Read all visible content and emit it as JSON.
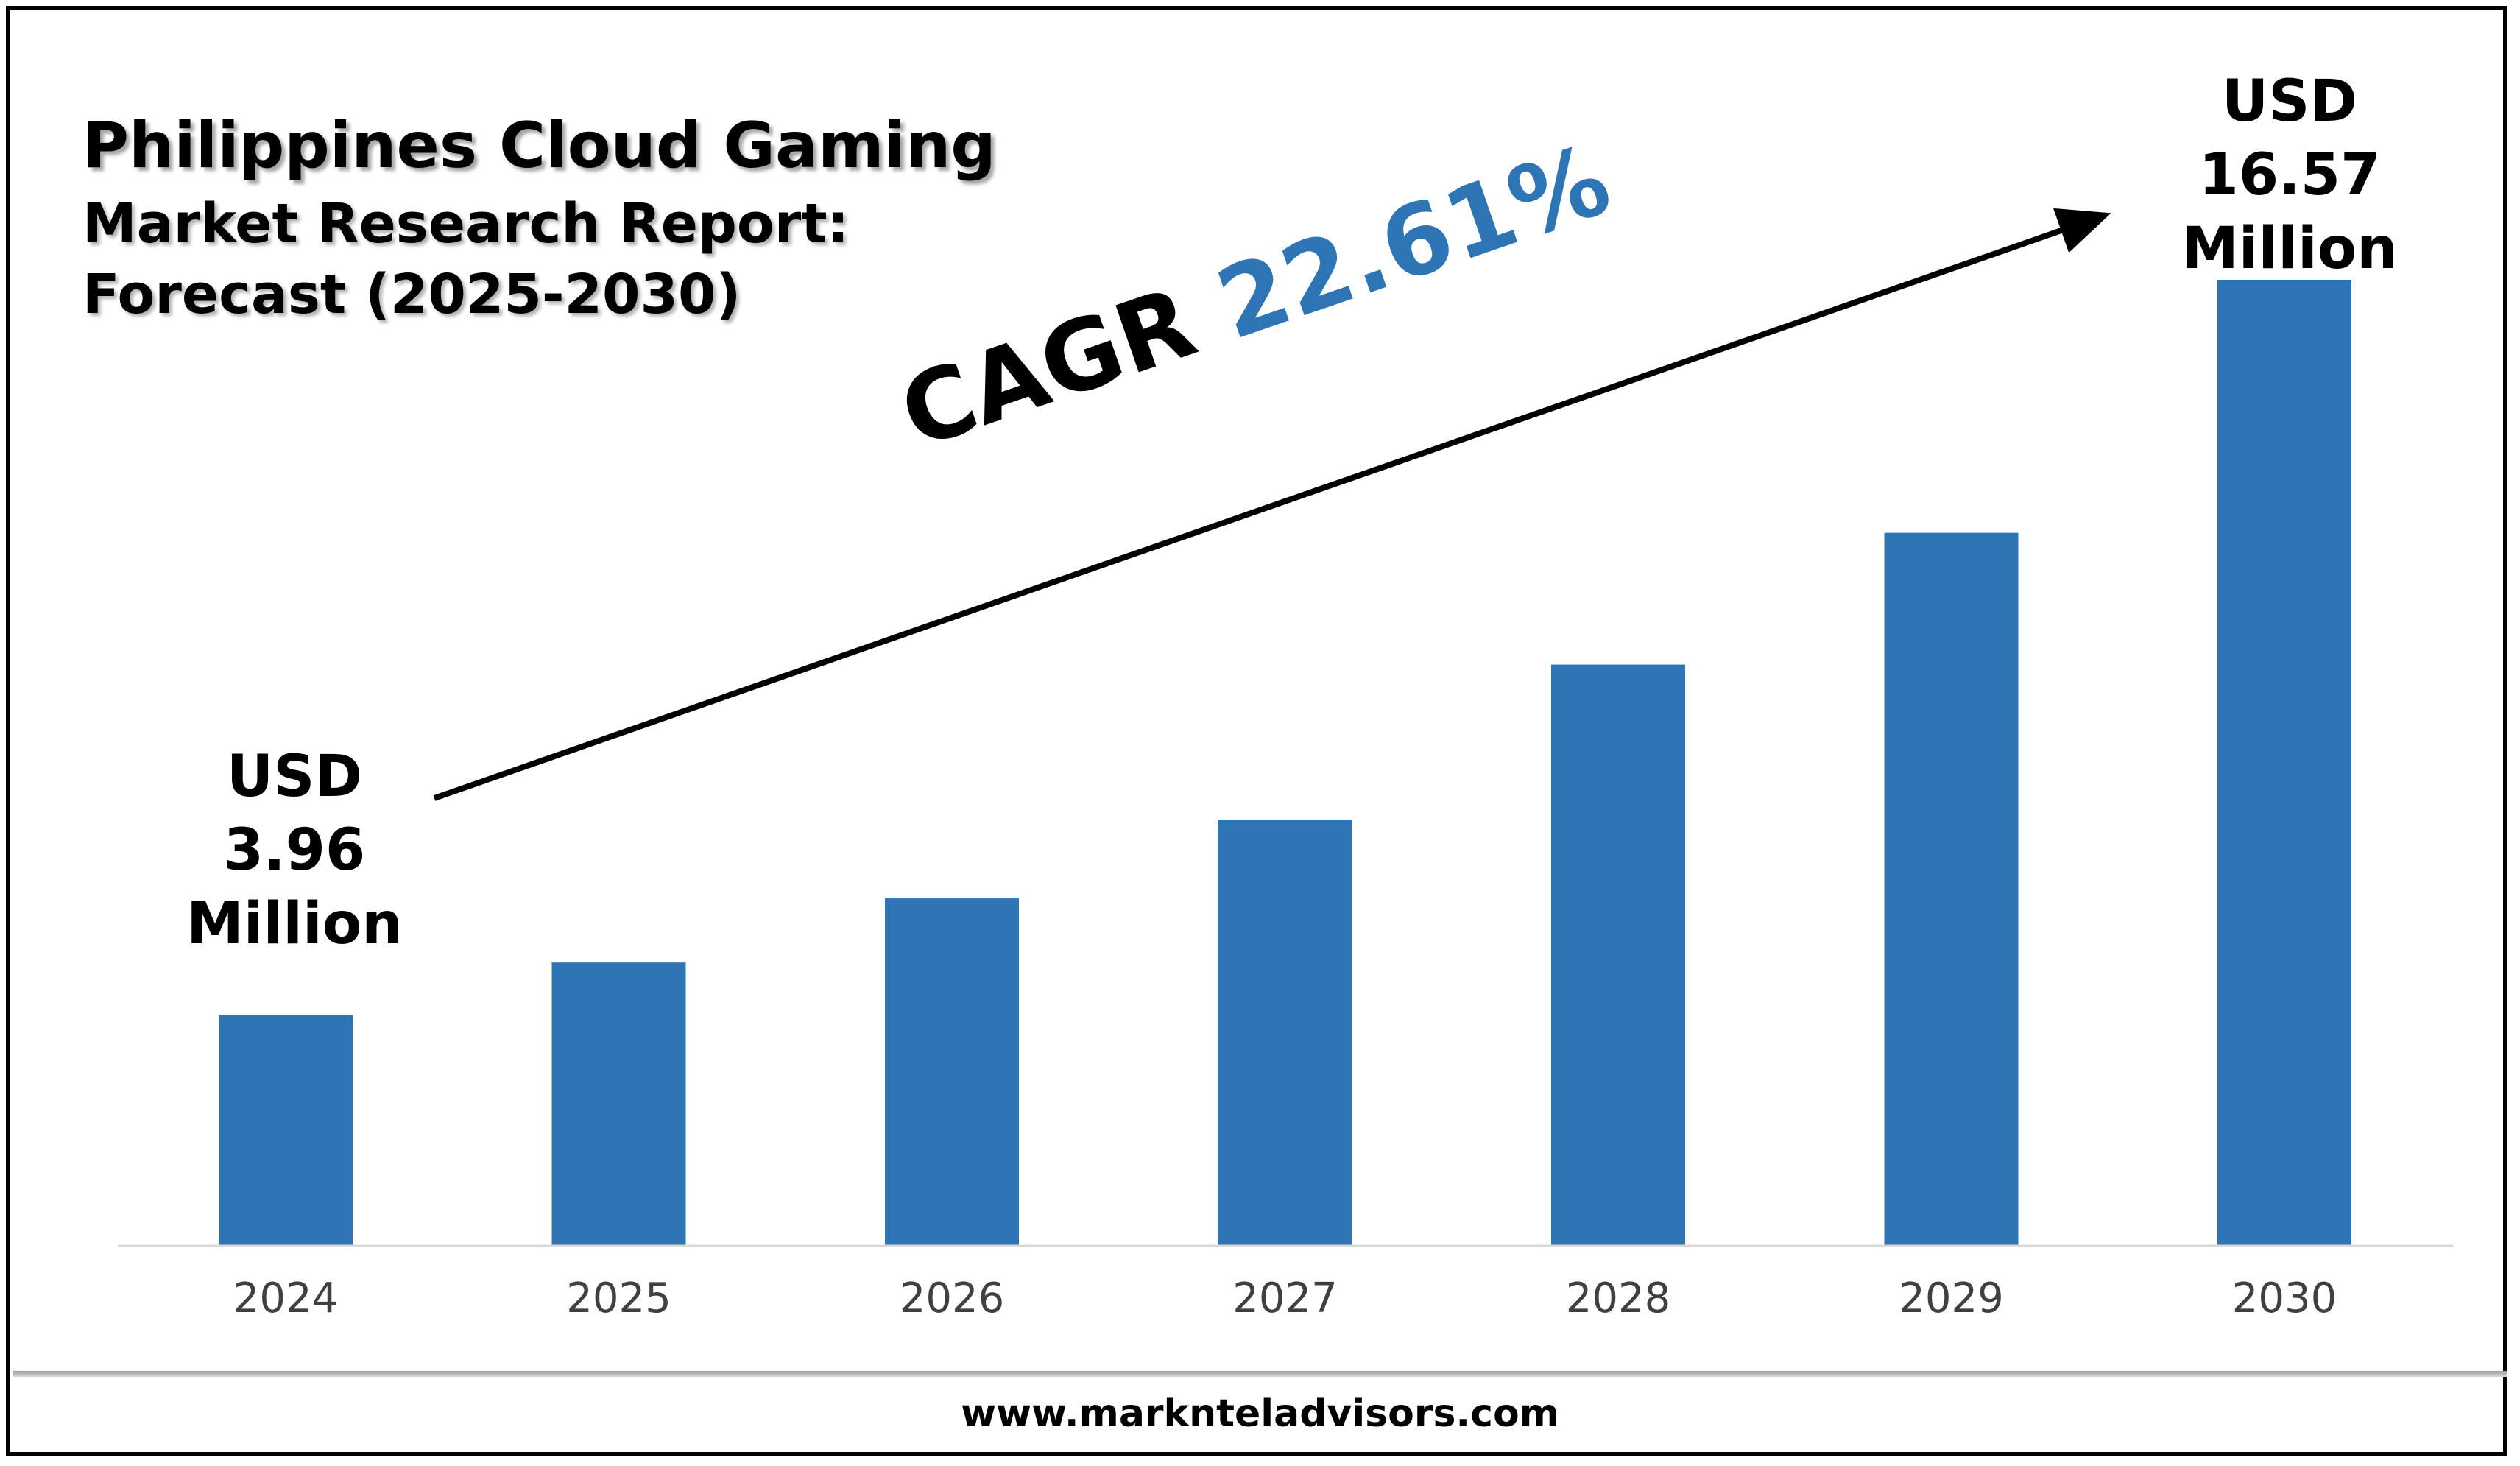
{
  "chart_data": {
    "type": "bar",
    "title": "Philippines Cloud Gaming",
    "subtitle_lines": [
      "Market Research Report:",
      "Forecast (2025-2030)"
    ],
    "categories": [
      "2024",
      "2025",
      "2026",
      "2027",
      "2028",
      "2029",
      "2030"
    ],
    "values": [
      3.96,
      4.86,
      5.96,
      7.31,
      9.97,
      12.23,
      16.57
    ],
    "unit": "USD Million",
    "ylim": [
      0,
      20
    ],
    "grid": false,
    "bar_color": "#2e75b6",
    "start_label": [
      "USD",
      "3.96",
      "Million"
    ],
    "end_label": [
      "USD",
      "16.57",
      "Million"
    ],
    "cagr_prefix": "CAGR",
    "cagr_value": "22.61%",
    "cagr_color": "#2e75b6"
  },
  "footer": {
    "website": "www.marknteladvisors.com"
  }
}
